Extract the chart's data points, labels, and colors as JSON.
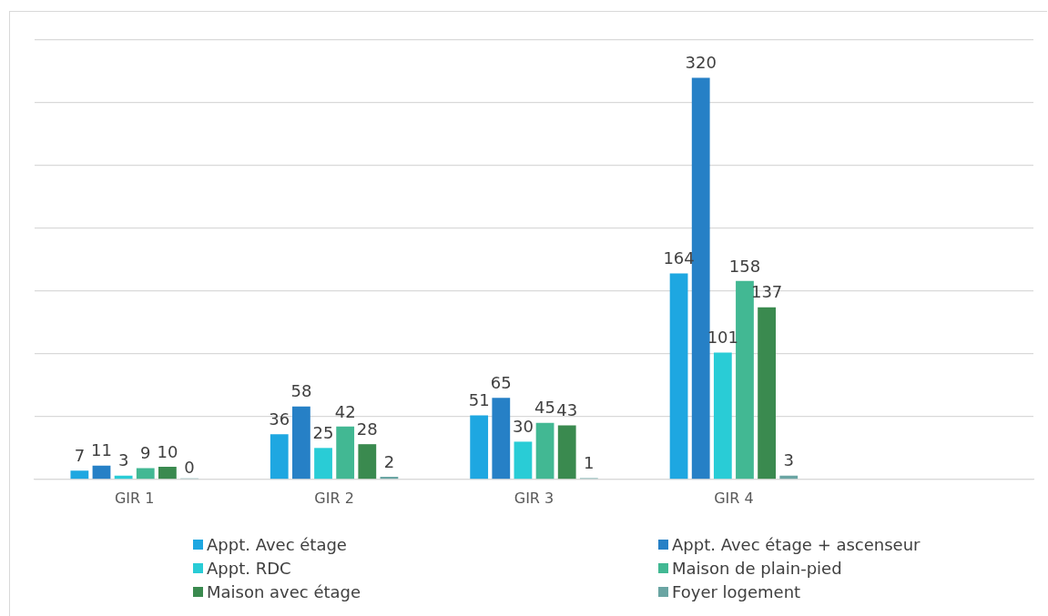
{
  "chart_data": {
    "type": "bar",
    "categories": [
      "GIR 1",
      "GIR 2",
      "GIR 3",
      "GIR 4",
      null
    ],
    "series": [
      {
        "name": "Appt. Avec étage",
        "color": "#1ea7e1",
        "values": [
          7,
          36,
          51,
          164,
          null
        ]
      },
      {
        "name": "Appt. Avec étage + ascenseur",
        "color": "#2680c6",
        "values": [
          11,
          58,
          65,
          320,
          null
        ]
      },
      {
        "name": "Appt. RDC",
        "color": "#29ccd6",
        "values": [
          3,
          25,
          30,
          101,
          null
        ]
      },
      {
        "name": "Maison de plain-pied",
        "color": "#42b893",
        "values": [
          9,
          42,
          45,
          158,
          null
        ]
      },
      {
        "name": "Maison avec étage",
        "color": "#3a8a4f",
        "values": [
          10,
          28,
          43,
          137,
          null
        ]
      },
      {
        "name": "Foyer logement",
        "color": "#6aa5a3",
        "values": [
          0,
          2,
          1,
          3,
          null
        ]
      }
    ],
    "ylim": [
      0,
      350
    ],
    "yticks": [
      {
        "value": 0,
        "label": null
      },
      {
        "value": 50,
        "label": null
      },
      {
        "value": 100,
        "label": null
      },
      {
        "value": 150,
        "label": null
      },
      {
        "value": 200,
        "label": null
      },
      {
        "value": 250,
        "label": null
      },
      {
        "value": 300,
        "label": null
      },
      {
        "value": 350,
        "label": null
      }
    ],
    "tick_labels": "x",
    "grid": "y",
    "legend": "bottom",
    "data_labels": true
  }
}
